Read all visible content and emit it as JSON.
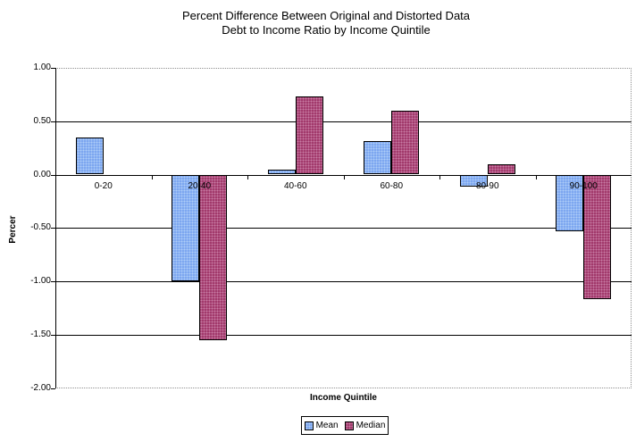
{
  "chart_data": {
    "type": "bar",
    "title": "Percent Difference Between Original and Distorted Data",
    "subtitle": "Debt to Income Ratio by Income Quintile",
    "xlabel": "Income Quintile",
    "ylabel": "Percer",
    "ylim": [
      -2.0,
      1.0
    ],
    "ytick_step": 0.5,
    "ytick_labels": [
      "1.00",
      "0.50",
      "0.00",
      "-0.50",
      "-1.00",
      "-1.50",
      "-2.00"
    ],
    "categories": [
      "0-20",
      "20-40",
      "40-60",
      "60-80",
      "80-90",
      "90-100"
    ],
    "series": [
      {
        "name": "Mean",
        "color": "#7da7f0",
        "dot_color": "#aecdf8",
        "values": [
          0.35,
          -1.0,
          0.05,
          0.31,
          -0.11,
          -0.53
        ]
      },
      {
        "name": "Median",
        "color": "#a23a6c",
        "dot_color": "#c87ca4",
        "values": [
          0.0,
          -1.55,
          0.73,
          0.6,
          0.1,
          -1.17
        ]
      }
    ],
    "grid": "horizontal",
    "gridline_color": "#000000",
    "plot_border_color": "#8f8f8f",
    "legend_position": "bottom-center",
    "legend_entries": [
      "Mean",
      "Median"
    ]
  }
}
